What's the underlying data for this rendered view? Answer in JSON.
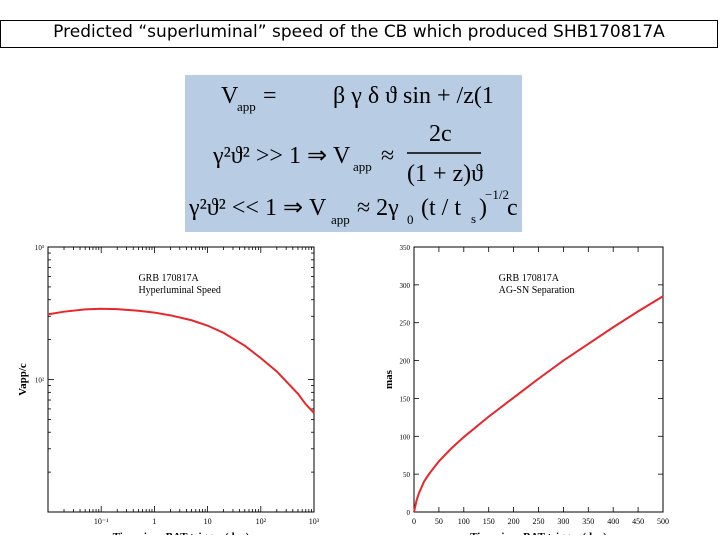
{
  "title": "Predicted “superluminal” speed of the CB which  produced  SHB170817A",
  "formula": {
    "line1": {
      "lhs": "V",
      "lhs_sub": "app",
      "eq": "=",
      "rhs": "β γ δ ϑ sin + /z(1"
    },
    "line2": {
      "cond": "γ²ϑ² >> 1 ⇒ V",
      "cond_sub": "app",
      "approx": "≈",
      "numerator": "2c",
      "denominator": "(1 + z)ϑ"
    },
    "line3": {
      "cond": "γ²ϑ² << 1 ⇒ V",
      "cond_sub": "app",
      "approx": "≈ 2γ",
      "gamma_sub": "0",
      "rest": "(t / t",
      "ts_sub": "s",
      "close": ")",
      "exponent": "−1/2",
      "tail": "c"
    }
  },
  "colors": {
    "formula_bg": "#b8cce4",
    "curve": "#e8262b",
    "axis": "#000000"
  },
  "chart_data": [
    {
      "type": "line",
      "xscale": "log",
      "yscale": "log",
      "xlim": [
        0.01,
        1000
      ],
      "ylim": [
        10,
        1000
      ],
      "xticklabels": [
        "10⁻¹",
        "1",
        "10",
        "10²",
        "10³"
      ],
      "xtickvalues": [
        0.1,
        1,
        10,
        100,
        1000
      ],
      "yticklabels": [
        "10³",
        "10²"
      ],
      "ytickvalues": [
        1000,
        100
      ],
      "xlabel": "Time since BAT trigger (day)",
      "ylabel": "Vapp/c",
      "annotation": [
        "GRB 170817A",
        "Hyperluminal Speed"
      ],
      "series": [
        {
          "x": [
            0.01,
            0.02,
            0.05,
            0.1,
            0.2,
            0.5,
            1,
            2,
            5,
            10,
            20,
            50,
            100,
            200,
            500,
            700,
            1000
          ],
          "values": [
            310,
            325,
            338,
            342,
            340,
            330,
            320,
            305,
            280,
            255,
            225,
            180,
            145,
            115,
            78,
            65,
            56
          ]
        }
      ]
    },
    {
      "type": "line",
      "xlim": [
        0,
        500
      ],
      "ylim": [
        0,
        350
      ],
      "xticks": [
        0,
        50,
        100,
        150,
        200,
        250,
        300,
        350,
        400,
        450,
        500
      ],
      "yticks": [
        0,
        50,
        100,
        150,
        200,
        250,
        300,
        350
      ],
      "xlabel": "Time since BAT trigger (day)",
      "ylabel": "mas",
      "annotation": [
        "GRB 170817A",
        "AG-SN Separation"
      ],
      "series": [
        {
          "x": [
            0,
            5,
            10,
            20,
            30,
            50,
            75,
            100,
            150,
            200,
            250,
            300,
            350,
            400,
            450,
            500
          ],
          "values": [
            0,
            15,
            25,
            40,
            50,
            67,
            84,
            99,
            126,
            151,
            176,
            200,
            222,
            244,
            265,
            285
          ]
        }
      ]
    }
  ]
}
